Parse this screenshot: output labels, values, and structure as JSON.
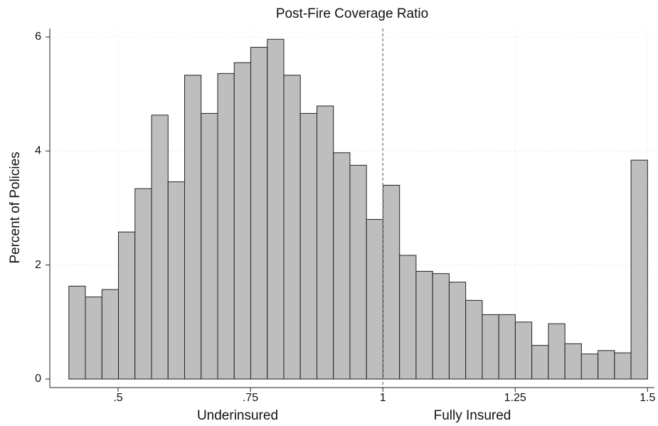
{
  "chart_data": {
    "type": "histogram",
    "title": "Post-Fire Coverage Ratio",
    "y_label": "Percent of Policies",
    "annotations": [
      "Underinsured",
      "Fully Insured"
    ],
    "bins": [
      0.407,
      0.4382,
      0.4695,
      0.5007,
      0.5319,
      0.5632,
      0.5944,
      0.6256,
      0.6568,
      0.6881,
      0.7193,
      0.7505,
      0.7818,
      0.813,
      0.8442,
      0.8755,
      0.9067,
      0.9379,
      0.9691,
      1.0004,
      1.0316,
      1.0628,
      1.0941,
      1.1253,
      1.1565,
      1.1878,
      1.219,
      1.2502,
      1.2814,
      1.3127,
      1.3439,
      1.3751,
      1.4064,
      1.4376,
      1.4688,
      1.5
    ],
    "values": [
      1.63,
      1.44,
      1.57,
      2.58,
      3.34,
      4.63,
      3.46,
      5.33,
      4.66,
      5.36,
      5.55,
      5.82,
      5.96,
      5.33,
      4.66,
      4.79,
      3.97,
      3.75,
      2.8,
      3.4,
      2.17,
      1.89,
      1.85,
      1.7,
      1.38,
      1.13,
      1.13,
      1.0,
      0.59,
      0.97,
      0.62,
      0.44,
      0.5,
      0.46,
      3.84
    ],
    "color": "#bebebe",
    "edge_color": "#222222",
    "xlim": [
      0.371,
      1.513
    ],
    "ylim": [
      -0.15,
      6.15
    ],
    "xticks": [
      {
        "value": 0.5,
        "label": ".5"
      },
      {
        "value": 0.75,
        "label": ".75"
      },
      1,
      1.25,
      1.5
    ],
    "yticks": [
      0,
      2,
      4,
      6
    ],
    "grid": true,
    "reference_line": 1
  }
}
